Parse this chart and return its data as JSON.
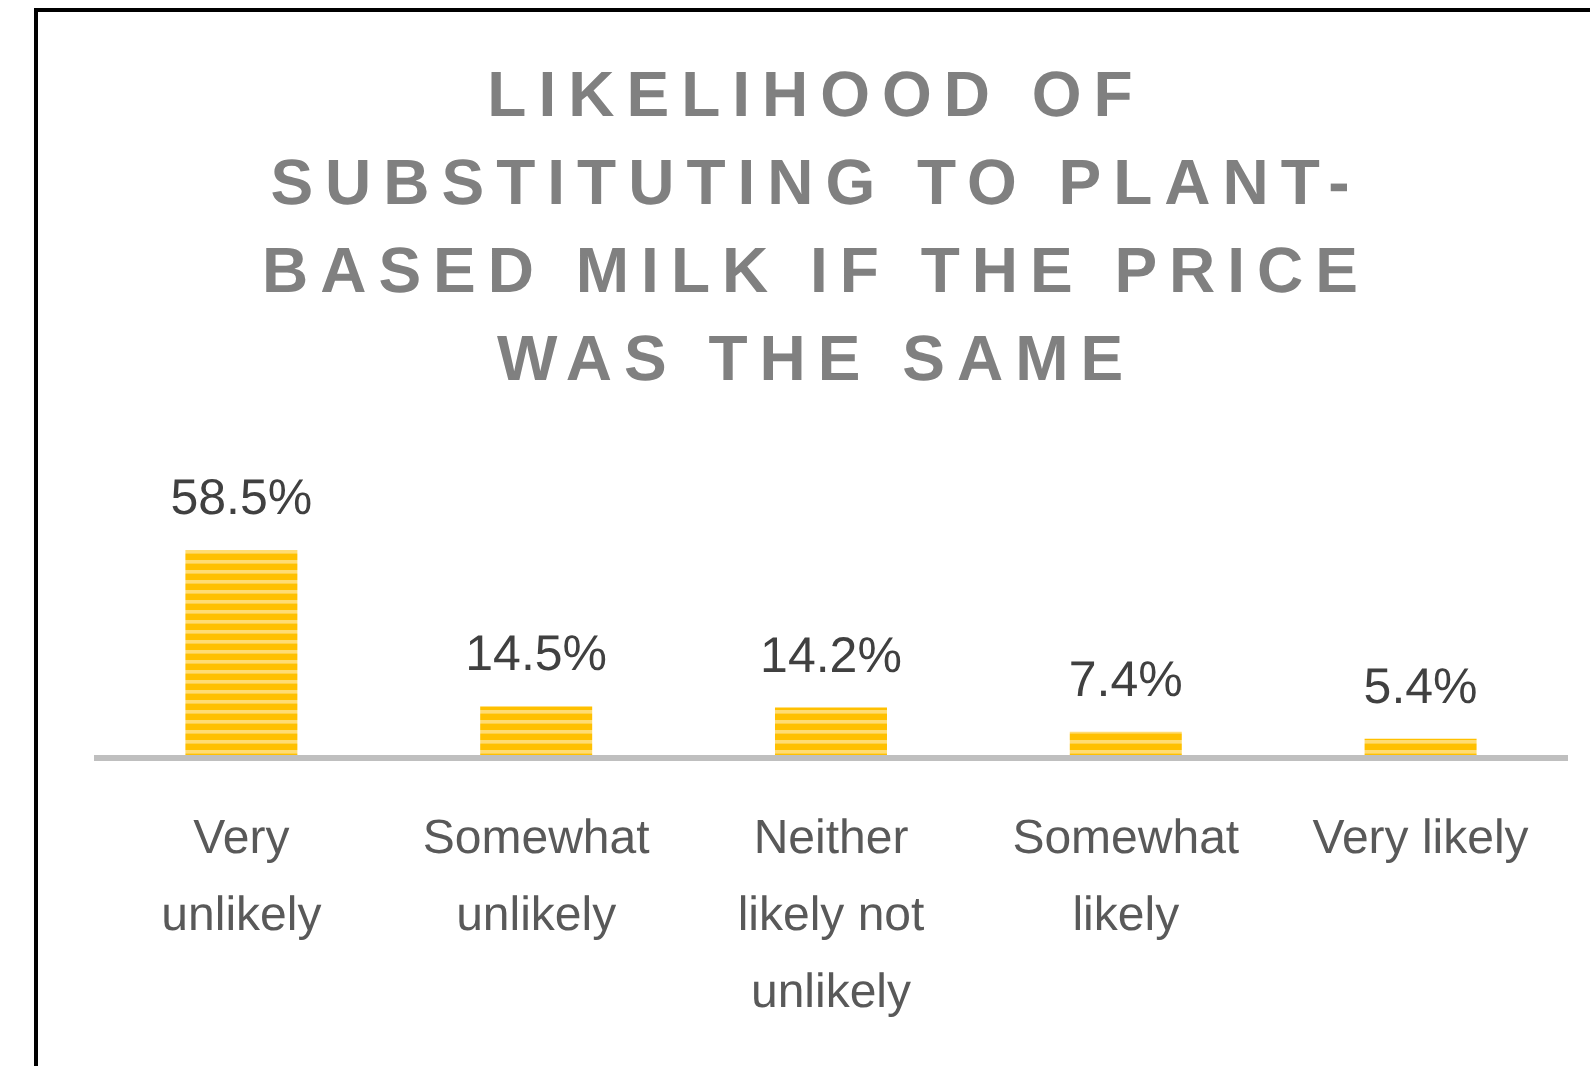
{
  "chart_data": {
    "type": "bar",
    "title": "LIKELIHOOD OF SUBSTITUTING TO PLANT-BASED MILK IF THE PRICE WAS THE SAME",
    "categories": [
      "Very unlikely",
      "Somewhat unlikely",
      "Neither likely not unlikely",
      "Somewhat likely",
      "Very likely"
    ],
    "values": [
      58.5,
      14.5,
      14.2,
      7.4,
      5.4
    ],
    "value_labels": [
      "58.5%",
      "14.5%",
      "14.2%",
      "7.4%",
      "5.4%"
    ],
    "color": "#ffc000"
  }
}
